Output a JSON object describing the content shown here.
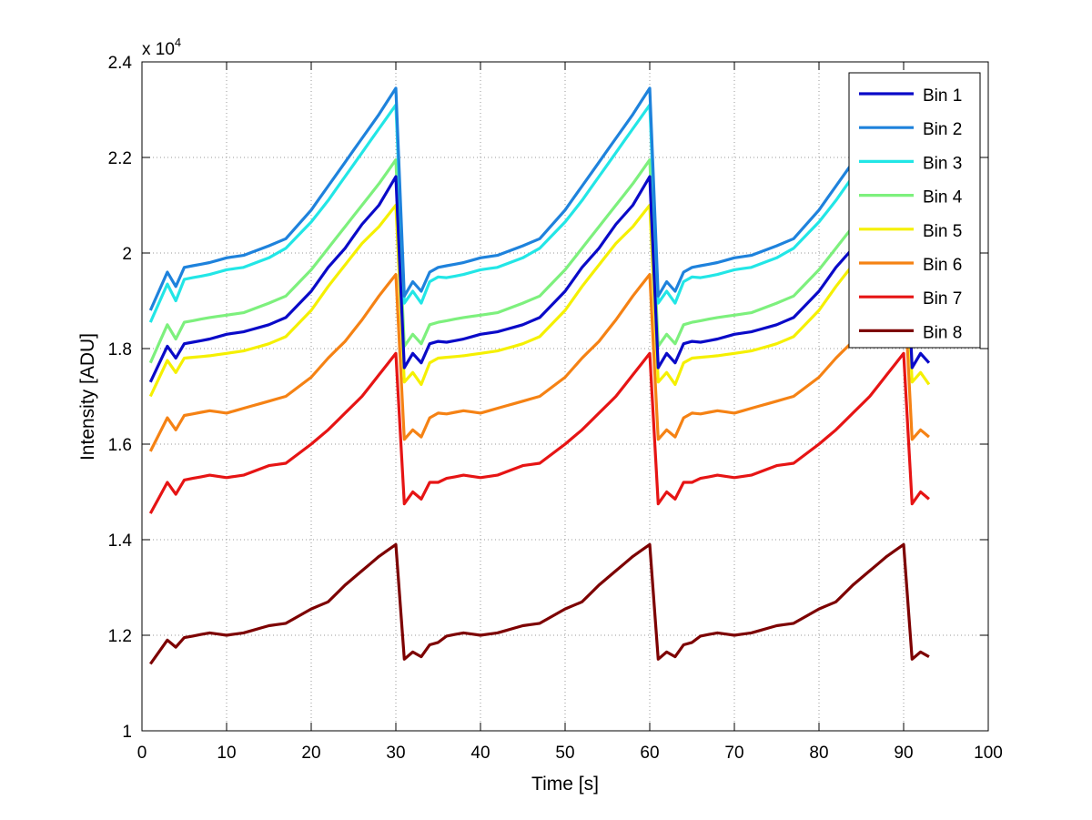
{
  "chart_data": {
    "type": "line",
    "xlabel": "Time [s]",
    "ylabel": "Intensity [ADU]",
    "exponent_label": "x 10",
    "exponent_power": "4",
    "xlim": [
      0,
      100
    ],
    "ylim": [
      10000,
      24000
    ],
    "xticks": [
      0,
      10,
      20,
      30,
      40,
      50,
      60,
      70,
      80,
      90,
      100
    ],
    "yticks": [
      10000,
      12000,
      14000,
      16000,
      18000,
      20000,
      22000,
      24000
    ],
    "ytick_labels": [
      "1",
      "1.2",
      "1.4",
      "1.6",
      "1.8",
      "2",
      "2.2",
      "2.4"
    ],
    "grid": true,
    "legend_position": "top-right",
    "period_s": 30,
    "x_start": 1,
    "x_end": 93,
    "series": [
      {
        "name": "Bin 1",
        "color": "#0a0ac8",
        "profile": [
          [
            1,
            17300
          ],
          [
            3,
            18050
          ],
          [
            4,
            17800
          ],
          [
            5,
            18100
          ],
          [
            8,
            18200
          ],
          [
            10,
            18300
          ],
          [
            12,
            18350
          ],
          [
            15,
            18500
          ],
          [
            17,
            18650
          ],
          [
            20,
            19200
          ],
          [
            22,
            19700
          ],
          [
            24,
            20100
          ],
          [
            26,
            20600
          ],
          [
            28,
            21000
          ],
          [
            30,
            21600
          ]
        ],
        "after_drop": [
          [
            31,
            17600
          ],
          [
            32,
            17900
          ],
          [
            33,
            17700
          ],
          [
            34,
            18100
          ],
          [
            35,
            18150
          ]
        ]
      },
      {
        "name": "Bin 2",
        "color": "#1e82dc",
        "profile": [
          [
            1,
            18800
          ],
          [
            3,
            19600
          ],
          [
            4,
            19300
          ],
          [
            5,
            19700
          ],
          [
            8,
            19800
          ],
          [
            10,
            19900
          ],
          [
            12,
            19950
          ],
          [
            15,
            20150
          ],
          [
            17,
            20300
          ],
          [
            20,
            20900
          ],
          [
            22,
            21400
          ],
          [
            24,
            21900
          ],
          [
            26,
            22400
          ],
          [
            28,
            22900
          ],
          [
            30,
            23450
          ]
        ],
        "after_drop": [
          [
            31,
            19100
          ],
          [
            32,
            19400
          ],
          [
            33,
            19200
          ],
          [
            34,
            19600
          ],
          [
            35,
            19700
          ]
        ]
      },
      {
        "name": "Bin 3",
        "color": "#22e6e6",
        "profile": [
          [
            1,
            18550
          ],
          [
            3,
            19350
          ],
          [
            4,
            19000
          ],
          [
            5,
            19450
          ],
          [
            8,
            19550
          ],
          [
            10,
            19650
          ],
          [
            12,
            19700
          ],
          [
            15,
            19900
          ],
          [
            17,
            20100
          ],
          [
            20,
            20650
          ],
          [
            22,
            21100
          ],
          [
            24,
            21600
          ],
          [
            26,
            22100
          ],
          [
            28,
            22600
          ],
          [
            30,
            23100
          ]
        ],
        "after_drop": [
          [
            31,
            18950
          ],
          [
            32,
            19200
          ],
          [
            33,
            18950
          ],
          [
            34,
            19400
          ],
          [
            35,
            19500
          ]
        ]
      },
      {
        "name": "Bin 4",
        "color": "#7df07d",
        "profile": [
          [
            1,
            17700
          ],
          [
            3,
            18500
          ],
          [
            4,
            18200
          ],
          [
            5,
            18550
          ],
          [
            8,
            18650
          ],
          [
            10,
            18700
          ],
          [
            12,
            18750
          ],
          [
            15,
            18950
          ],
          [
            17,
            19100
          ],
          [
            20,
            19650
          ],
          [
            22,
            20100
          ],
          [
            24,
            20550
          ],
          [
            26,
            21000
          ],
          [
            28,
            21450
          ],
          [
            30,
            21950
          ]
        ],
        "after_drop": [
          [
            31,
            18050
          ],
          [
            32,
            18300
          ],
          [
            33,
            18100
          ],
          [
            34,
            18500
          ],
          [
            35,
            18550
          ]
        ]
      },
      {
        "name": "Bin 5",
        "color": "#f5f000",
        "profile": [
          [
            1,
            17000
          ],
          [
            3,
            17750
          ],
          [
            4,
            17500
          ],
          [
            5,
            17800
          ],
          [
            8,
            17850
          ],
          [
            10,
            17900
          ],
          [
            12,
            17950
          ],
          [
            15,
            18100
          ],
          [
            17,
            18250
          ],
          [
            20,
            18800
          ],
          [
            22,
            19300
          ],
          [
            24,
            19750
          ],
          [
            26,
            20200
          ],
          [
            28,
            20550
          ],
          [
            30,
            21000
          ]
        ],
        "after_drop": [
          [
            31,
            17300
          ],
          [
            32,
            17500
          ],
          [
            33,
            17250
          ],
          [
            34,
            17700
          ],
          [
            35,
            17800
          ]
        ]
      },
      {
        "name": "Bin 6",
        "color": "#f58214",
        "profile": [
          [
            1,
            15850
          ],
          [
            3,
            16550
          ],
          [
            4,
            16300
          ],
          [
            5,
            16600
          ],
          [
            8,
            16700
          ],
          [
            10,
            16650
          ],
          [
            12,
            16750
          ],
          [
            15,
            16900
          ],
          [
            17,
            17000
          ],
          [
            20,
            17400
          ],
          [
            22,
            17800
          ],
          [
            24,
            18150
          ],
          [
            26,
            18600
          ],
          [
            28,
            19100
          ],
          [
            30,
            19550
          ]
        ],
        "after_drop": [
          [
            31,
            16100
          ],
          [
            32,
            16300
          ],
          [
            33,
            16150
          ],
          [
            34,
            16550
          ],
          [
            35,
            16650
          ]
        ]
      },
      {
        "name": "Bin 7",
        "color": "#e61414",
        "profile": [
          [
            1,
            14550
          ],
          [
            3,
            15200
          ],
          [
            4,
            14950
          ],
          [
            5,
            15250
          ],
          [
            8,
            15350
          ],
          [
            10,
            15300
          ],
          [
            12,
            15350
          ],
          [
            15,
            15550
          ],
          [
            17,
            15600
          ],
          [
            20,
            16000
          ],
          [
            22,
            16300
          ],
          [
            24,
            16650
          ],
          [
            26,
            17000
          ],
          [
            28,
            17450
          ],
          [
            30,
            17900
          ]
        ],
        "after_drop": [
          [
            31,
            14750
          ],
          [
            32,
            15000
          ],
          [
            33,
            14850
          ],
          [
            34,
            15200
          ],
          [
            35,
            15200
          ]
        ]
      },
      {
        "name": "Bin 8",
        "color": "#7d0000",
        "profile": [
          [
            1,
            11400
          ],
          [
            3,
            11900
          ],
          [
            4,
            11750
          ],
          [
            5,
            11950
          ],
          [
            8,
            12050
          ],
          [
            10,
            12000
          ],
          [
            12,
            12050
          ],
          [
            15,
            12200
          ],
          [
            17,
            12250
          ],
          [
            20,
            12550
          ],
          [
            22,
            12700
          ],
          [
            24,
            13050
          ],
          [
            26,
            13350
          ],
          [
            28,
            13650
          ],
          [
            30,
            13900
          ]
        ],
        "after_drop": [
          [
            31,
            11500
          ],
          [
            32,
            11650
          ],
          [
            33,
            11550
          ],
          [
            34,
            11800
          ],
          [
            35,
            11850
          ]
        ]
      }
    ]
  }
}
